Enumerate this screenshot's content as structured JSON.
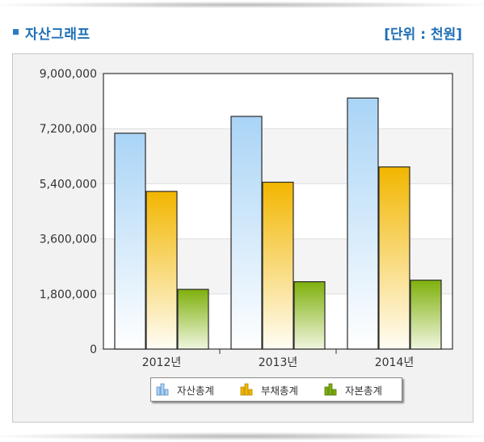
{
  "header": {
    "title": "자산그래프",
    "unit": "[단위 : 천원]"
  },
  "legend": {
    "items": [
      "자산총계",
      "부채총계",
      "자본총계"
    ]
  },
  "colors": {
    "asset_top": "#a9d4f6",
    "asset_bottom": "#ffffff",
    "debt_top": "#f2b600",
    "debt_bottom": "#fffdf5",
    "equity_top": "#7fb00c",
    "equity_bottom": "#f0f6e0",
    "title": "#1f6fb6"
  },
  "chart_data": {
    "type": "bar",
    "categories": [
      "2012년",
      "2013년",
      "2014년"
    ],
    "series": [
      {
        "name": "자산총계",
        "values": [
          7050000,
          7600000,
          8200000
        ]
      },
      {
        "name": "부채총계",
        "values": [
          5150000,
          5450000,
          5950000
        ]
      },
      {
        "name": "자본총계",
        "values": [
          1950000,
          2200000,
          2250000
        ]
      }
    ],
    "ylim": [
      0,
      9000000
    ],
    "yticks": [
      0,
      1800000,
      3600000,
      5400000,
      7200000,
      9000000
    ],
    "ytick_labels": [
      "0",
      "1,800,000",
      "3,600,000",
      "5,400,000",
      "7,200,000",
      "9,000,000"
    ],
    "grid": true,
    "legend_position": "bottom-center",
    "xlabel": "",
    "ylabel": ""
  }
}
